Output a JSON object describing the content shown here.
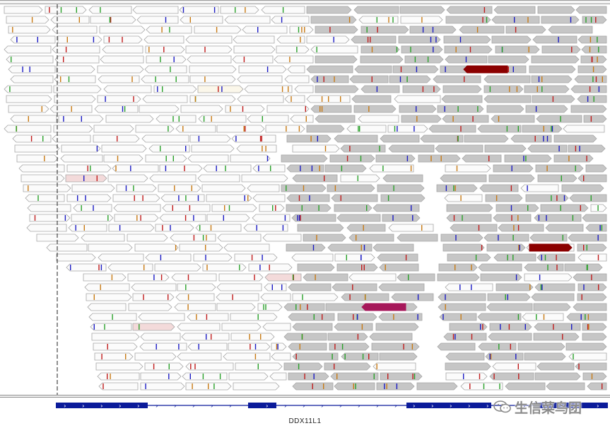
{
  "viewer": {
    "view": "read alignment",
    "colors": {
      "read_fill": "#fbfbfb",
      "read_stroke": "#a6a6a6",
      "low_mapq_fill": "#c6c6c6",
      "mismatch_a": "#2aa12a",
      "mismatch_c": "#1c1cc4",
      "mismatch_g": "#c87a14",
      "mismatch_t": "#c01c1c",
      "discordant_dark_red": "#8b0000",
      "discordant_magenta": "#a6175a",
      "gene_feature": "#0b1b9a"
    }
  },
  "gene_track": {
    "gene_name": "DDX11L1",
    "strand_glyph": "›",
    "direction": "+"
  },
  "watermark": {
    "icon": "wechat-icon",
    "text": "生信菜鸟团"
  }
}
